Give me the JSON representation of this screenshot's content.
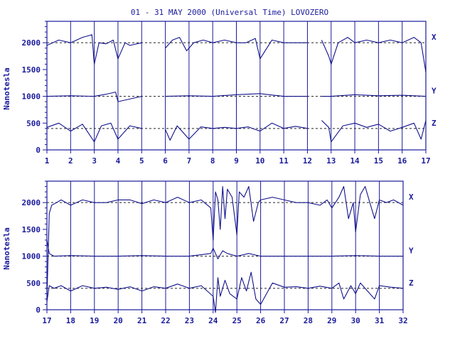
{
  "chart_data": [
    {
      "type": "line",
      "title": "01 - 31 MAY 2000 (Universal Time) LOVOZERO",
      "ylabel": "Nanotesla",
      "xlabel": "",
      "x_ticks": [
        "1",
        "2",
        "3",
        "4",
        "5",
        "6",
        "7",
        "8",
        "9",
        "10",
        "11",
        "12",
        "13",
        "14",
        "15",
        "16",
        "17"
      ],
      "xlim": [
        1,
        17
      ],
      "ylim": [
        0,
        2400
      ],
      "y_ticks": [
        0,
        500,
        1000,
        1500,
        2000
      ],
      "baselines": [
        2000,
        1000,
        400
      ],
      "grid": "vertical day lines; dashed horizontal baselines",
      "gaps": [
        [
          5.0,
          6.0
        ],
        [
          12.0,
          12.6
        ]
      ],
      "series": [
        {
          "name": "X",
          "baseline": 2000,
          "x": [
            1,
            1.5,
            2,
            2.5,
            2.9,
            3.0,
            3.2,
            3.5,
            3.8,
            4.0,
            4.3,
            4.5,
            5.0,
            6.0,
            6.3,
            6.6,
            6.9,
            7.2,
            7.6,
            8.0,
            8.5,
            9.0,
            9.4,
            9.8,
            10.0,
            10.5,
            11.0,
            11.5,
            12.0,
            12.6,
            12.9,
            13.0,
            13.3,
            13.7,
            14.0,
            14.5,
            15.0,
            15.5,
            16.0,
            16.5,
            16.8,
            17.0
          ],
          "values": [
            1950,
            2050,
            2000,
            2100,
            2150,
            1600,
            2000,
            1980,
            2050,
            1700,
            2000,
            1950,
            2000,
            1900,
            2050,
            2100,
            1850,
            2000,
            2050,
            2000,
            2050,
            2000,
            2000,
            2080,
            1700,
            2050,
            2000,
            2000,
            2000,
            2050,
            1750,
            1600,
            2000,
            2100,
            2000,
            2050,
            2000,
            2050,
            2000,
            2100,
            2000,
            1450
          ]
        },
        {
          "name": "Y",
          "baseline": 1000,
          "x": [
            1,
            2,
            3,
            3.5,
            3.9,
            4.0,
            5.0,
            6.0,
            7.0,
            8.0,
            9.0,
            10.0,
            11.0,
            12.0,
            12.6,
            13.0,
            14.0,
            15.0,
            16.0,
            17.0
          ],
          "values": [
            1000,
            1010,
            1000,
            1040,
            1080,
            900,
            1000,
            1000,
            1010,
            1000,
            1030,
            1050,
            1000,
            1000,
            1000,
            1000,
            1030,
            1010,
            1020,
            1000
          ]
        },
        {
          "name": "Z",
          "baseline": 400,
          "x": [
            1,
            1.5,
            2,
            2.5,
            3.0,
            3.3,
            3.7,
            4.0,
            4.5,
            5.0,
            6.0,
            6.2,
            6.5,
            7.0,
            7.5,
            8.0,
            8.5,
            9.0,
            9.5,
            10.0,
            10.5,
            11.0,
            11.5,
            12.0,
            12.6,
            12.9,
            13.0,
            13.5,
            14.0,
            14.5,
            15.0,
            15.5,
            16.0,
            16.5,
            16.8,
            17.0
          ],
          "values": [
            420,
            500,
            350,
            480,
            150,
            450,
            500,
            200,
            450,
            400,
            380,
            180,
            450,
            200,
            430,
            400,
            420,
            400,
            430,
            350,
            500,
            400,
            440,
            400,
            550,
            420,
            150,
            450,
            500,
            420,
            480,
            350,
            420,
            500,
            200,
            550
          ]
        }
      ]
    },
    {
      "type": "line",
      "title": "",
      "ylabel": "Nanotesla",
      "xlabel": "",
      "x_ticks": [
        "17",
        "18",
        "19",
        "20",
        "21",
        "22",
        "23",
        "24",
        "25",
        "26",
        "27",
        "28",
        "29",
        "30",
        "31",
        "32"
      ],
      "xlim": [
        17,
        32
      ],
      "ylim": [
        0,
        2400
      ],
      "y_ticks": [
        0,
        500,
        1000,
        1500,
        2000
      ],
      "baselines": [
        2000,
        1000,
        400
      ],
      "grid": "vertical day lines; dashed horizontal baselines",
      "gaps": [],
      "series": [
        {
          "name": "X",
          "baseline": 2000,
          "x": [
            17.0,
            17.1,
            17.2,
            17.4,
            17.6,
            18.0,
            18.5,
            19.0,
            19.5,
            20.0,
            20.5,
            21.0,
            21.5,
            22.0,
            22.5,
            23.0,
            23.5,
            23.9,
            24.0,
            24.1,
            24.2,
            24.3,
            24.4,
            24.5,
            24.6,
            24.8,
            25.0,
            25.1,
            25.3,
            25.5,
            25.7,
            25.9,
            26.0,
            26.5,
            27.0,
            27.5,
            28.0,
            28.5,
            28.8,
            29.0,
            29.3,
            29.5,
            29.7,
            29.9,
            30.0,
            30.2,
            30.4,
            30.6,
            30.8,
            31.0,
            31.3,
            31.6,
            32.0
          ],
          "values": [
            200,
            1800,
            1950,
            2000,
            2050,
            1950,
            2050,
            2000,
            2000,
            2050,
            2050,
            1980,
            2050,
            2000,
            2100,
            2000,
            2050,
            1900,
            1300,
            2200,
            2050,
            1500,
            2300,
            1700,
            2250,
            2100,
            1400,
            2200,
            2100,
            2300,
            1650,
            2000,
            2050,
            2100,
            2050,
            2000,
            2000,
            1950,
            2050,
            1900,
            2100,
            2300,
            1700,
            2000,
            1450,
            2150,
            2300,
            2000,
            1700,
            2050,
            2000,
            2050,
            1950
          ]
        },
        {
          "name": "Y",
          "baseline": 1000,
          "x": [
            17.0,
            17.1,
            17.3,
            18.0,
            19.0,
            20.0,
            21.0,
            22.0,
            23.0,
            23.9,
            24.0,
            24.2,
            24.4,
            24.6,
            25.0,
            25.5,
            26.0,
            27.0,
            28.0,
            29.0,
            30.0,
            31.0,
            32.0
          ],
          "values": [
            1300,
            1050,
            1000,
            1010,
            1000,
            1000,
            1010,
            1000,
            1000,
            1050,
            1150,
            950,
            1100,
            1050,
            1000,
            1050,
            1000,
            1000,
            1000,
            1000,
            1010,
            1000,
            1000
          ]
        },
        {
          "name": "Z",
          "baseline": 400,
          "x": [
            17.0,
            17.1,
            17.3,
            17.6,
            18.0,
            18.5,
            19.0,
            19.5,
            20.0,
            20.5,
            21.0,
            21.5,
            22.0,
            22.5,
            23.0,
            23.5,
            24.0,
            24.1,
            24.2,
            24.3,
            24.5,
            24.7,
            25.0,
            25.2,
            25.4,
            25.6,
            25.8,
            26.0,
            26.5,
            27.0,
            27.5,
            28.0,
            28.5,
            29.0,
            29.3,
            29.5,
            29.8,
            30.0,
            30.2,
            30.5,
            30.8,
            31.0,
            31.5,
            32.0
          ],
          "values": [
            150,
            450,
            400,
            450,
            350,
            450,
            400,
            420,
            380,
            430,
            350,
            430,
            400,
            480,
            400,
            450,
            250,
            -50,
            600,
            250,
            550,
            300,
            200,
            600,
            350,
            700,
            200,
            100,
            500,
            420,
            430,
            400,
            440,
            400,
            500,
            200,
            450,
            300,
            500,
            350,
            200,
            450,
            420,
            400
          ]
        }
      ]
    }
  ]
}
